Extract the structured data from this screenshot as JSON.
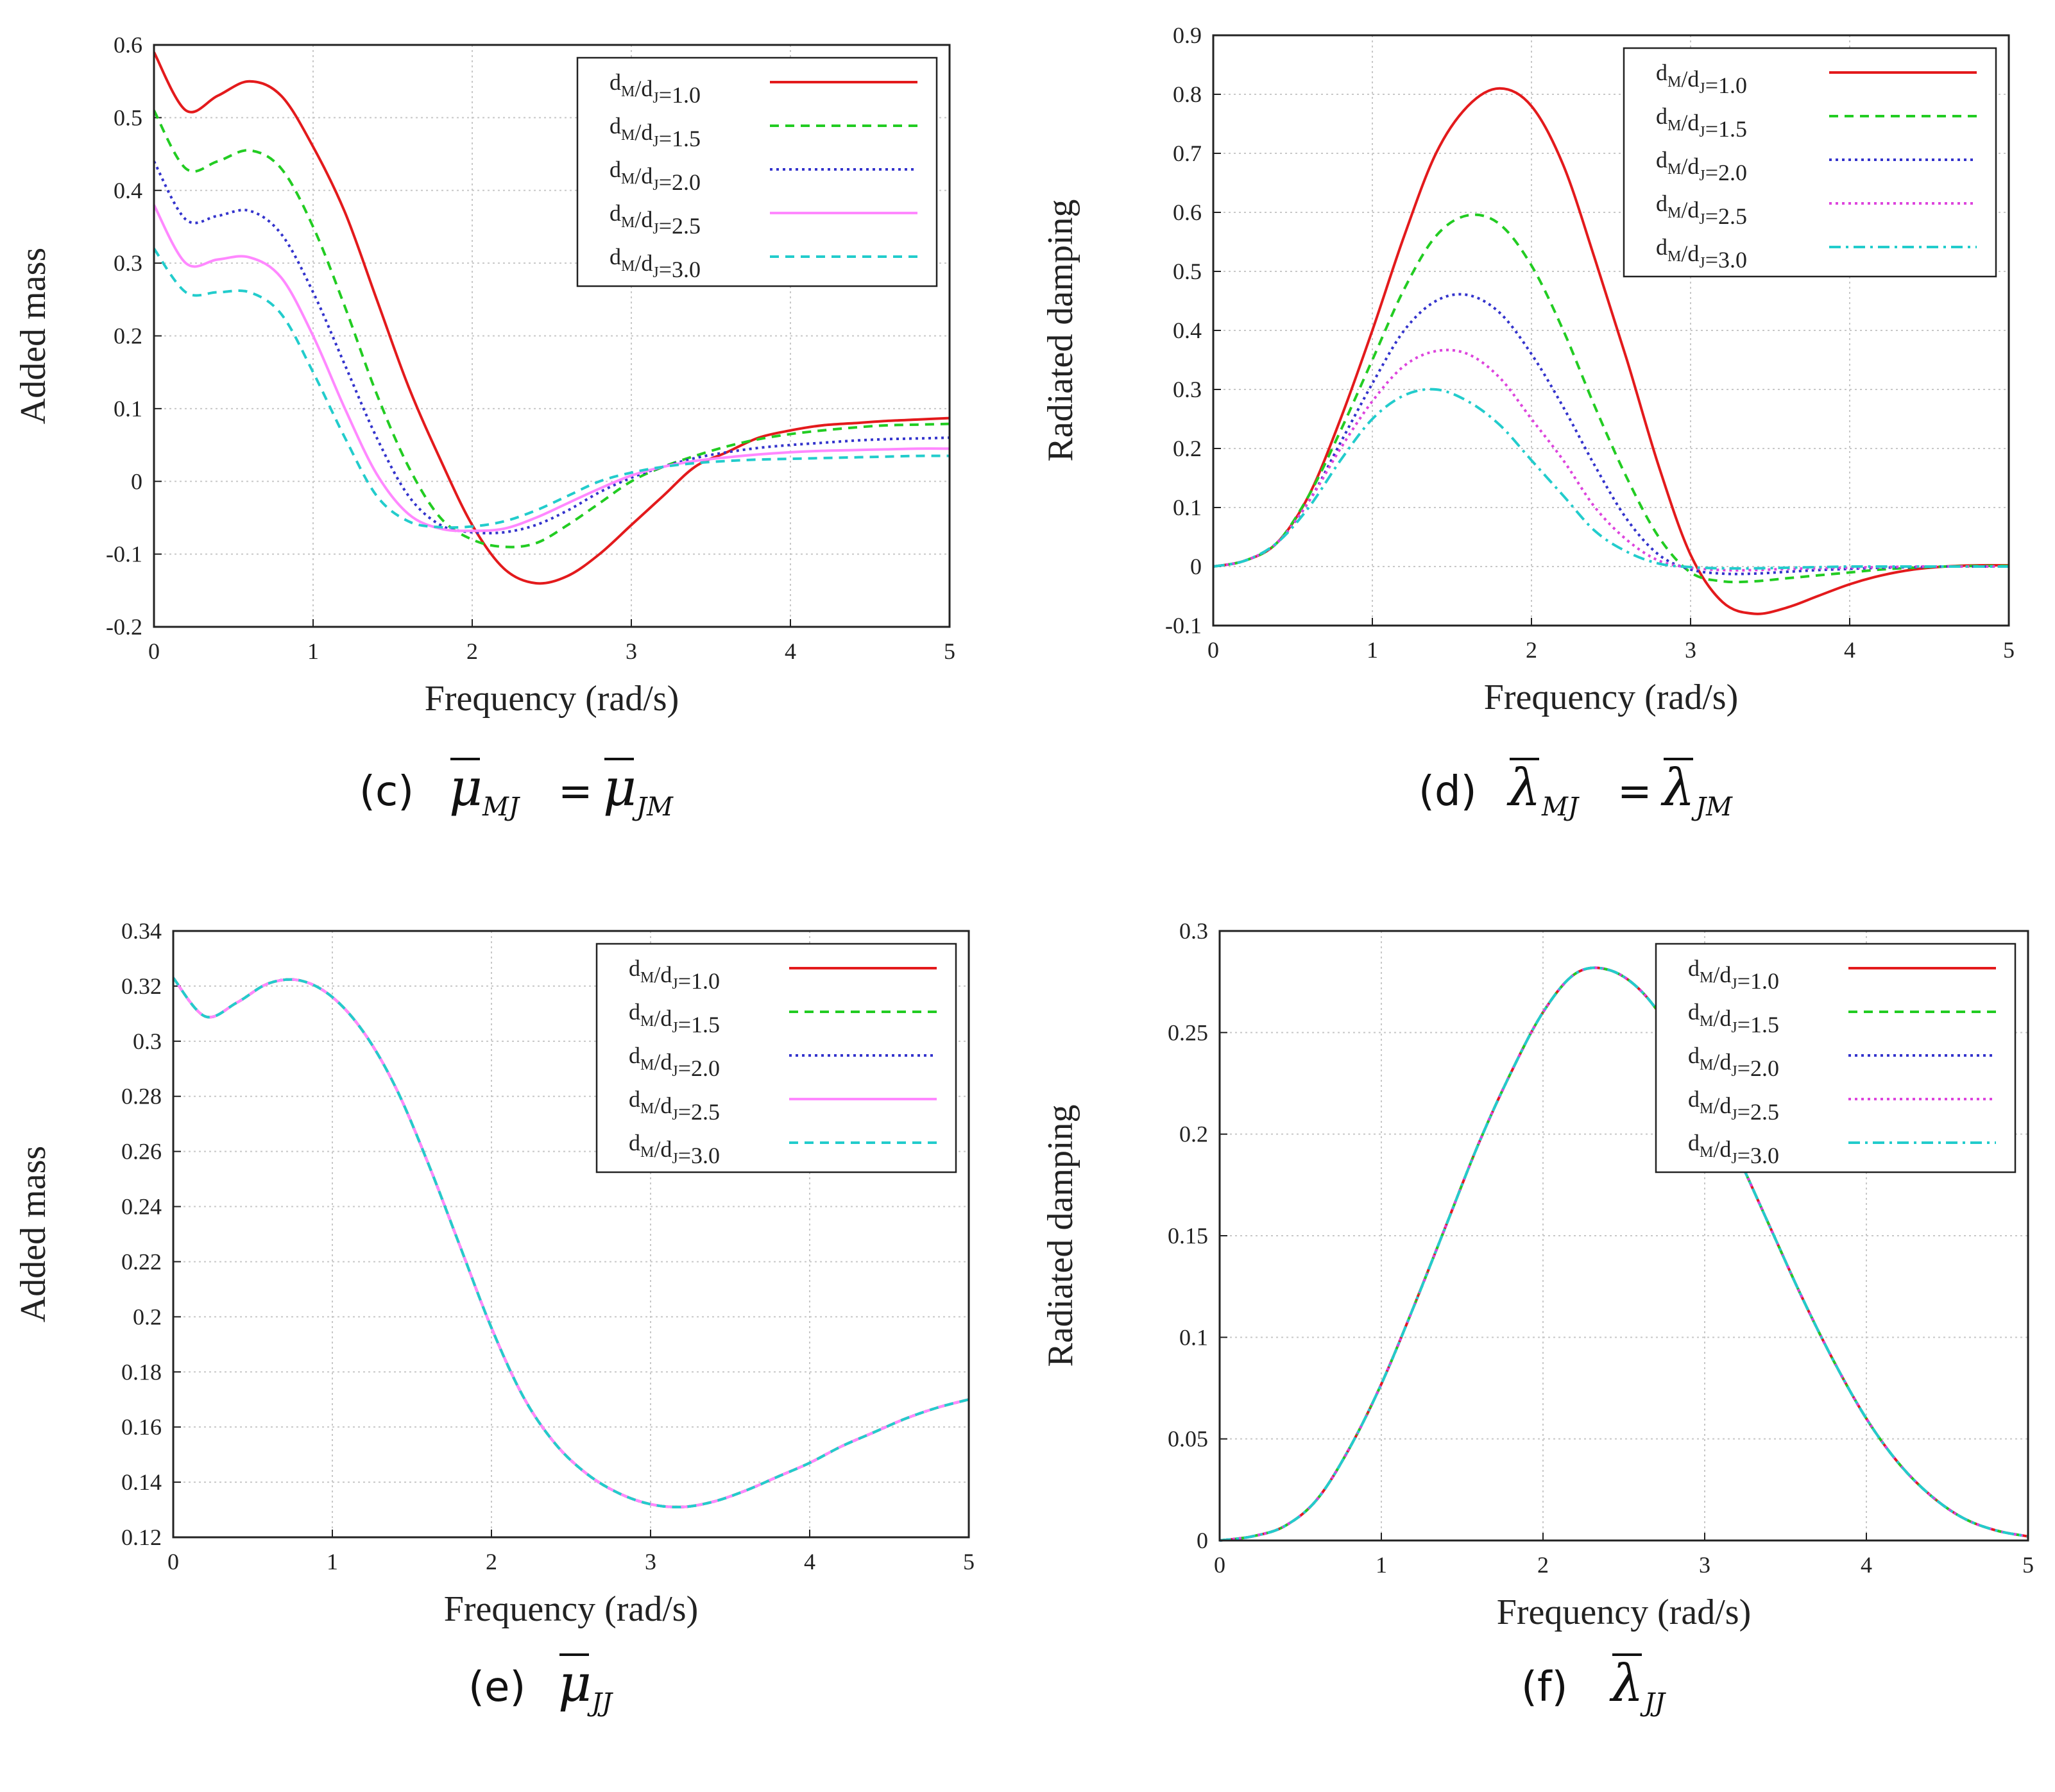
{
  "figure": {
    "panels": [
      {
        "id": "c",
        "caption": {
          "label": "(c)",
          "symbol": "μ",
          "left_sub": "MJ",
          "equals": "=",
          "right_symbol": "μ",
          "right_sub": "JM"
        },
        "xlabel": "Frequency (rad/s)",
        "ylabel": "Added mass"
      },
      {
        "id": "d",
        "caption": {
          "label": "(d)",
          "symbol": "λ",
          "left_sub": "MJ",
          "equals": "=",
          "right_symbol": "λ",
          "right_sub": "JM"
        },
        "xlabel": "Frequency (rad/s)",
        "ylabel": "Radiated damping"
      },
      {
        "id": "e",
        "caption": {
          "label": "(e)",
          "symbol": "μ",
          "left_sub": "JJ"
        },
        "xlabel": "Frequency (rad/s)",
        "ylabel": "Added mass"
      },
      {
        "id": "f",
        "caption": {
          "label": "(f)",
          "symbol": "λ",
          "left_sub": "JJ"
        },
        "xlabel": "Frequency (rad/s)",
        "ylabel": "Radiated damping"
      }
    ]
  },
  "chart_data": [
    {
      "type": "line",
      "panel": "c",
      "xlabel": "Frequency (rad/s)",
      "ylabel": "Added mass",
      "xlim": [
        0,
        5
      ],
      "ylim": [
        -0.2,
        0.6
      ],
      "xticks": [
        "0",
        "1",
        "2",
        "3",
        "4",
        "5"
      ],
      "yticks": [
        "-0.2",
        "-0.1",
        "0",
        "0.1",
        "0.2",
        "0.3",
        "0.4",
        "0.5",
        "0.6"
      ],
      "grid": true,
      "legend_position": "top-right",
      "x": [
        0,
        0.2,
        0.4,
        0.6,
        0.8,
        1.0,
        1.2,
        1.4,
        1.6,
        1.8,
        2.0,
        2.2,
        2.4,
        2.6,
        2.8,
        3.0,
        3.2,
        3.4,
        3.6,
        3.8,
        4.0,
        4.2,
        4.4,
        4.6,
        4.8,
        5.0
      ],
      "series": [
        {
          "name": "dM/dJ=1.0",
          "color": "#e31a1c",
          "dash": "solid",
          "values": [
            0.59,
            0.51,
            0.53,
            0.55,
            0.53,
            0.46,
            0.37,
            0.25,
            0.13,
            0.03,
            -0.06,
            -0.12,
            -0.14,
            -0.13,
            -0.1,
            -0.06,
            -0.02,
            0.02,
            0.04,
            0.06,
            0.07,
            0.077,
            0.08,
            0.083,
            0.085,
            0.087
          ]
        },
        {
          "name": "dM/dJ=1.5",
          "color": "#22cc22",
          "dash": "dash",
          "values": [
            0.51,
            0.43,
            0.44,
            0.455,
            0.43,
            0.35,
            0.24,
            0.12,
            0.02,
            -0.05,
            -0.08,
            -0.09,
            -0.085,
            -0.06,
            -0.03,
            0.0,
            0.02,
            0.035,
            0.048,
            0.058,
            0.065,
            0.07,
            0.074,
            0.077,
            0.078,
            0.079
          ]
        },
        {
          "name": "dM/dJ=2.0",
          "color": "#3333cc",
          "dash": "dot",
          "values": [
            0.44,
            0.36,
            0.365,
            0.372,
            0.34,
            0.26,
            0.16,
            0.06,
            -0.02,
            -0.06,
            -0.07,
            -0.07,
            -0.06,
            -0.04,
            -0.015,
            0.005,
            0.02,
            0.032,
            0.04,
            0.046,
            0.05,
            0.053,
            0.056,
            0.058,
            0.059,
            0.06
          ]
        },
        {
          "name": "dM/dJ=2.5",
          "color": "#ff88ff",
          "dash": "solid",
          "values": [
            0.38,
            0.3,
            0.305,
            0.308,
            0.28,
            0.2,
            0.1,
            0.01,
            -0.045,
            -0.065,
            -0.068,
            -0.065,
            -0.05,
            -0.03,
            -0.01,
            0.008,
            0.02,
            0.028,
            0.033,
            0.037,
            0.04,
            0.042,
            0.043,
            0.044,
            0.045,
            0.045
          ]
        },
        {
          "name": "dM/dJ=3.0",
          "color": "#22cccc",
          "dash": "dash",
          "values": [
            0.32,
            0.26,
            0.26,
            0.26,
            0.23,
            0.15,
            0.06,
            -0.02,
            -0.055,
            -0.063,
            -0.062,
            -0.055,
            -0.04,
            -0.02,
            0.0,
            0.012,
            0.02,
            0.025,
            0.028,
            0.03,
            0.031,
            0.032,
            0.033,
            0.034,
            0.035,
            0.035
          ]
        }
      ]
    },
    {
      "type": "line",
      "panel": "d",
      "xlabel": "Frequency (rad/s)",
      "ylabel": "Radiated damping",
      "xlim": [
        0,
        5
      ],
      "ylim": [
        -0.1,
        0.9
      ],
      "xticks": [
        "0",
        "1",
        "2",
        "3",
        "4",
        "5"
      ],
      "yticks": [
        "-0.1",
        "0",
        "0.1",
        "0.2",
        "0.3",
        "0.4",
        "0.5",
        "0.6",
        "0.7",
        "0.8",
        "0.9"
      ],
      "grid": true,
      "legend_position": "top-right",
      "x": [
        0,
        0.2,
        0.4,
        0.6,
        0.8,
        1.0,
        1.2,
        1.4,
        1.6,
        1.8,
        2.0,
        2.2,
        2.4,
        2.6,
        2.8,
        3.0,
        3.2,
        3.4,
        3.6,
        3.8,
        4.0,
        4.2,
        4.4,
        4.6,
        4.8,
        5.0
      ],
      "series": [
        {
          "name": "dM/dJ=1.0",
          "color": "#e31a1c",
          "dash": "solid",
          "values": [
            0,
            0.01,
            0.04,
            0.12,
            0.25,
            0.4,
            0.56,
            0.7,
            0.78,
            0.81,
            0.78,
            0.68,
            0.52,
            0.35,
            0.17,
            0.02,
            -0.06,
            -0.08,
            -0.07,
            -0.05,
            -0.03,
            -0.015,
            -0.005,
            0.0,
            0.002,
            0.002
          ]
        },
        {
          "name": "dM/dJ=1.5",
          "color": "#22cc22",
          "dash": "dash",
          "values": [
            0,
            0.01,
            0.04,
            0.12,
            0.23,
            0.35,
            0.47,
            0.56,
            0.595,
            0.58,
            0.51,
            0.4,
            0.27,
            0.15,
            0.05,
            -0.01,
            -0.025,
            -0.025,
            -0.02,
            -0.015,
            -0.01,
            -0.005,
            -0.002,
            0.0,
            0.001,
            0.001
          ]
        },
        {
          "name": "dM/dJ=2.0",
          "color": "#3333cc",
          "dash": "dot",
          "values": [
            0,
            0.01,
            0.04,
            0.11,
            0.21,
            0.31,
            0.4,
            0.45,
            0.46,
            0.43,
            0.36,
            0.27,
            0.17,
            0.08,
            0.02,
            -0.005,
            -0.012,
            -0.012,
            -0.009,
            -0.006,
            -0.004,
            -0.002,
            -0.001,
            0.0,
            0.0,
            0.0
          ]
        },
        {
          "name": "dM/dJ=2.5",
          "color": "#dd44dd",
          "dash": "dot",
          "values": [
            0,
            0.01,
            0.04,
            0.11,
            0.2,
            0.28,
            0.34,
            0.365,
            0.36,
            0.32,
            0.25,
            0.18,
            0.1,
            0.045,
            0.01,
            -0.002,
            -0.006,
            -0.006,
            -0.004,
            -0.003,
            -0.002,
            -0.001,
            0.0,
            0.0,
            0.0,
            0.0
          ]
        },
        {
          "name": "dM/dJ=3.0",
          "color": "#22cccc",
          "dash": "dashdot",
          "values": [
            0,
            0.01,
            0.04,
            0.1,
            0.18,
            0.25,
            0.29,
            0.3,
            0.28,
            0.24,
            0.18,
            0.12,
            0.06,
            0.025,
            0.005,
            -0.001,
            -0.003,
            -0.003,
            -0.002,
            -0.001,
            0.0,
            0.0,
            0.0,
            0.0,
            0.0,
            0.0
          ]
        }
      ]
    },
    {
      "type": "line",
      "panel": "e",
      "xlabel": "Frequency (rad/s)",
      "ylabel": "Added mass",
      "xlim": [
        0,
        5
      ],
      "ylim": [
        0.12,
        0.34
      ],
      "xticks": [
        "0",
        "1",
        "2",
        "3",
        "4",
        "5"
      ],
      "yticks": [
        "0.12",
        "0.14",
        "0.16",
        "0.18",
        "0.2",
        "0.22",
        "0.24",
        "0.26",
        "0.28",
        "0.3",
        "0.32",
        "0.34"
      ],
      "grid": true,
      "legend_position": "top-right",
      "x": [
        0,
        0.2,
        0.4,
        0.6,
        0.8,
        1.0,
        1.2,
        1.4,
        1.6,
        1.8,
        2.0,
        2.2,
        2.4,
        2.6,
        2.8,
        3.0,
        3.2,
        3.4,
        3.6,
        3.8,
        4.0,
        4.2,
        4.4,
        4.6,
        4.8,
        5.0
      ],
      "series": [
        {
          "name": "dM/dJ=1.0",
          "color": "#e31a1c",
          "dash": "solid",
          "values": [
            0.323,
            0.309,
            0.314,
            0.321,
            0.322,
            0.316,
            0.303,
            0.283,
            0.256,
            0.226,
            0.196,
            0.171,
            0.154,
            0.143,
            0.136,
            0.132,
            0.131,
            0.133,
            0.137,
            0.142,
            0.147,
            0.153,
            0.158,
            0.163,
            0.167,
            0.17
          ]
        },
        {
          "name": "dM/dJ=1.5",
          "color": "#22cc22",
          "dash": "dash",
          "values": [
            0.323,
            0.309,
            0.314,
            0.321,
            0.322,
            0.316,
            0.303,
            0.283,
            0.256,
            0.226,
            0.196,
            0.171,
            0.154,
            0.143,
            0.136,
            0.132,
            0.131,
            0.133,
            0.137,
            0.142,
            0.147,
            0.153,
            0.158,
            0.163,
            0.167,
            0.17
          ]
        },
        {
          "name": "dM/dJ=2.0",
          "color": "#3333cc",
          "dash": "dot",
          "values": [
            0.323,
            0.309,
            0.314,
            0.321,
            0.322,
            0.316,
            0.303,
            0.283,
            0.256,
            0.226,
            0.196,
            0.171,
            0.154,
            0.143,
            0.136,
            0.132,
            0.131,
            0.133,
            0.137,
            0.142,
            0.147,
            0.153,
            0.158,
            0.163,
            0.167,
            0.17
          ]
        },
        {
          "name": "dM/dJ=2.5",
          "color": "#ff88ff",
          "dash": "solid",
          "values": [
            0.323,
            0.309,
            0.314,
            0.321,
            0.322,
            0.316,
            0.303,
            0.283,
            0.256,
            0.226,
            0.196,
            0.171,
            0.154,
            0.143,
            0.136,
            0.132,
            0.131,
            0.133,
            0.137,
            0.142,
            0.147,
            0.153,
            0.158,
            0.163,
            0.167,
            0.17
          ]
        },
        {
          "name": "dM/dJ=3.0",
          "color": "#22cccc",
          "dash": "dash",
          "values": [
            0.323,
            0.309,
            0.314,
            0.321,
            0.322,
            0.316,
            0.303,
            0.283,
            0.256,
            0.226,
            0.196,
            0.171,
            0.154,
            0.143,
            0.136,
            0.132,
            0.131,
            0.133,
            0.137,
            0.142,
            0.147,
            0.153,
            0.158,
            0.163,
            0.167,
            0.17
          ]
        }
      ]
    },
    {
      "type": "line",
      "panel": "f",
      "xlabel": "Frequency (rad/s)",
      "ylabel": "Radiated damping",
      "xlim": [
        0,
        5
      ],
      "ylim": [
        0,
        0.3
      ],
      "xticks": [
        "0",
        "1",
        "2",
        "3",
        "4",
        "5"
      ],
      "yticks": [
        "0",
        "0.05",
        "0.1",
        "0.15",
        "0.2",
        "0.25",
        "0.3"
      ],
      "grid": true,
      "legend_position": "top-right",
      "x": [
        0,
        0.2,
        0.4,
        0.6,
        0.8,
        1.0,
        1.2,
        1.4,
        1.6,
        1.8,
        2.0,
        2.2,
        2.4,
        2.6,
        2.8,
        3.0,
        3.2,
        3.4,
        3.6,
        3.8,
        4.0,
        4.2,
        4.4,
        4.6,
        4.8,
        5.0
      ],
      "series": [
        {
          "name": "dM/dJ=1.0",
          "color": "#e31a1c",
          "dash": "solid",
          "values": [
            0,
            0.002,
            0.007,
            0.02,
            0.045,
            0.077,
            0.115,
            0.155,
            0.195,
            0.23,
            0.26,
            0.279,
            0.281,
            0.271,
            0.25,
            0.222,
            0.19,
            0.155,
            0.12,
            0.088,
            0.06,
            0.038,
            0.022,
            0.011,
            0.005,
            0.002
          ]
        },
        {
          "name": "dM/dJ=1.5",
          "color": "#22cc22",
          "dash": "dash",
          "values": [
            0,
            0.002,
            0.007,
            0.02,
            0.045,
            0.077,
            0.115,
            0.155,
            0.195,
            0.23,
            0.26,
            0.279,
            0.281,
            0.271,
            0.25,
            0.222,
            0.19,
            0.155,
            0.12,
            0.088,
            0.06,
            0.038,
            0.022,
            0.011,
            0.005,
            0.002
          ]
        },
        {
          "name": "dM/dJ=2.0",
          "color": "#3333cc",
          "dash": "dot",
          "values": [
            0,
            0.002,
            0.007,
            0.02,
            0.045,
            0.077,
            0.115,
            0.155,
            0.195,
            0.23,
            0.26,
            0.279,
            0.281,
            0.271,
            0.25,
            0.222,
            0.19,
            0.155,
            0.12,
            0.088,
            0.06,
            0.038,
            0.022,
            0.011,
            0.005,
            0.002
          ]
        },
        {
          "name": "dM/dJ=2.5",
          "color": "#dd44dd",
          "dash": "dot",
          "values": [
            0,
            0.002,
            0.007,
            0.02,
            0.045,
            0.077,
            0.115,
            0.155,
            0.195,
            0.23,
            0.26,
            0.279,
            0.281,
            0.271,
            0.25,
            0.222,
            0.19,
            0.155,
            0.12,
            0.088,
            0.06,
            0.038,
            0.022,
            0.011,
            0.005,
            0.002
          ]
        },
        {
          "name": "dM/dJ=3.0",
          "color": "#22cccc",
          "dash": "dashdot",
          "values": [
            0,
            0.002,
            0.007,
            0.02,
            0.045,
            0.077,
            0.115,
            0.155,
            0.195,
            0.23,
            0.26,
            0.279,
            0.281,
            0.271,
            0.25,
            0.222,
            0.19,
            0.155,
            0.12,
            0.088,
            0.06,
            0.038,
            0.022,
            0.011,
            0.005,
            0.002
          ]
        }
      ]
    }
  ]
}
